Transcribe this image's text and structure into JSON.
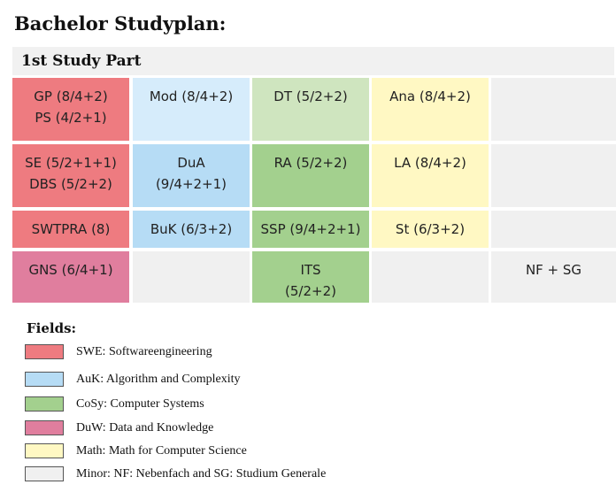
{
  "title": "Bachelor Studyplan:",
  "part_title": "1st Study Part",
  "grid": [
    {
      "lines": [
        "GP (8/4+2)",
        "PS (4/2+1)"
      ],
      "color": "#ee7b80"
    },
    {
      "lines": [
        "Mod (8/4+2)"
      ],
      "color": "#d6ecfb"
    },
    {
      "lines": [
        "DT (5/2+2)"
      ],
      "color": "#cfe5bf"
    },
    {
      "lines": [
        "Ana (8/4+2)"
      ],
      "color": "#fff8c3"
    },
    {
      "lines": [],
      "color": "#f0f0f0"
    },
    {
      "lines": [
        "SE (5/2+1+1)",
        "DBS (5/2+2)"
      ],
      "color": "#ee7b80"
    },
    {
      "lines": [
        "DuA",
        "(9/4+2+1)"
      ],
      "color": "#b6dcf5"
    },
    {
      "lines": [
        "RA (5/2+2)"
      ],
      "color": "#a3d08e"
    },
    {
      "lines": [
        "LA (8/4+2)"
      ],
      "color": "#fff8c3"
    },
    {
      "lines": [],
      "color": "#f0f0f0"
    },
    {
      "lines": [
        "SWTPRA (8)"
      ],
      "color": "#ee7b80"
    },
    {
      "lines": [
        "BuK (6/3+2)"
      ],
      "color": "#b6dcf5"
    },
    {
      "lines": [
        "SSP (9/4+2+1)"
      ],
      "color": "#a3d08e"
    },
    {
      "lines": [
        "St (6/3+2)"
      ],
      "color": "#fff8c3"
    },
    {
      "lines": [],
      "color": "#f0f0f0"
    },
    {
      "lines": [
        "GNS (6/4+1)"
      ],
      "color": "#e07e9e"
    },
    {
      "lines": [],
      "color": "#f0f0f0"
    },
    {
      "lines": [
        "ITS",
        "(5/2+2)"
      ],
      "color": "#a3d08e"
    },
    {
      "lines": [],
      "color": "#f0f0f0"
    },
    {
      "lines": [
        "NF + SG"
      ],
      "color": "#f0f0f0"
    }
  ],
  "fields_title": "Fields:",
  "legend": [
    {
      "label": "SWE: Softwareengineering",
      "color": "#ee7b80"
    },
    {
      "label": "AuK: Algorithm and Complexity",
      "color": "#b6dcf5"
    },
    {
      "label": "CoSy: Computer Systems",
      "color": "#a3d08e"
    },
    {
      "label": "DuW: Data and Knowledge",
      "color": "#e07e9e"
    },
    {
      "label": "Math: Math for Computer Science",
      "color": "#fff8c3"
    },
    {
      "label": "Minor: NF: Nebenfach and SG: Studium Generale",
      "color": "#f0f0f0"
    }
  ]
}
